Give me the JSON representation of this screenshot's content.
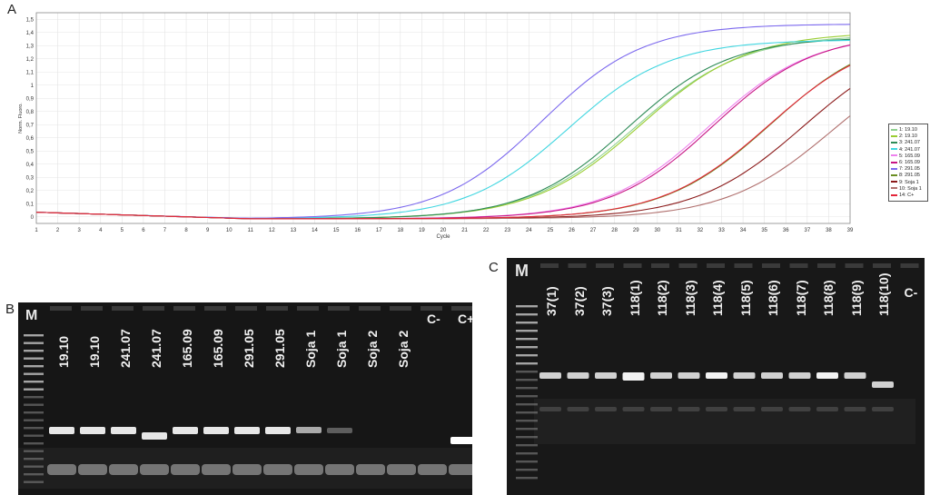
{
  "panels": {
    "a": "A",
    "b": "B",
    "c": "C"
  },
  "chart_data": {
    "type": "line",
    "xlabel": "Cycle",
    "ylabel": "Norm. Fluoro.",
    "xlim": [
      1,
      39
    ],
    "ylim": [
      -0.05,
      1.55
    ],
    "xticks": [
      "1",
      "2",
      "3",
      "4",
      "5",
      "6",
      "7",
      "8",
      "9",
      "10",
      "11",
      "12",
      "13",
      "14",
      "15",
      "16",
      "17",
      "18",
      "19",
      "20",
      "21",
      "22",
      "23",
      "24",
      "25",
      "26",
      "27",
      "28",
      "29",
      "30",
      "31",
      "32",
      "33",
      "34",
      "35",
      "36",
      "37",
      "38",
      "39"
    ],
    "yticks": [
      "0",
      "0,1",
      "0,2",
      "0,3",
      "0,4",
      "0,5",
      "0,6",
      "0,7",
      "0,8",
      "0,9",
      "1",
      "1,1",
      "1,2",
      "1,3",
      "1,4",
      "1,5"
    ],
    "grid": true,
    "legend_position": "right",
    "series": [
      {
        "name": "1: 19.10",
        "color": "#8fd18f",
        "plateau": 1.4,
        "midpoint": 29.0,
        "steepness": 0.4
      },
      {
        "name": "2: 19.10",
        "color": "#9acd32",
        "plateau": 1.42,
        "midpoint": 29.2,
        "steepness": 0.4
      },
      {
        "name": "3: 241.07",
        "color": "#2e8b57",
        "plateau": 1.38,
        "midpoint": 28.6,
        "steepness": 0.42
      },
      {
        "name": "4: 241.07",
        "color": "#40d6e0",
        "plateau": 1.36,
        "midpoint": 25.8,
        "steepness": 0.42
      },
      {
        "name": "5: 165.09",
        "color": "#ee82ee",
        "plateau": 1.4,
        "midpoint": 32.4,
        "steepness": 0.42
      },
      {
        "name": "6: 165.09",
        "color": "#c71585",
        "plateau": 1.41,
        "midpoint": 32.6,
        "steepness": 0.42
      },
      {
        "name": "7: 291.05",
        "color": "#7b68ee",
        "plateau": 1.48,
        "midpoint": 24.6,
        "steepness": 0.42
      },
      {
        "name": "8: 291.05",
        "color": "#6b8e23",
        "plateau": 1.44,
        "midpoint": 35.3,
        "steepness": 0.4
      },
      {
        "name": "9: Soja 1",
        "color": "#8b1a1a",
        "plateau": 1.4,
        "midpoint": 36.8,
        "steepness": 0.4
      },
      {
        "name": "10: Soja 1",
        "color": "#b0706e",
        "plateau": 1.35,
        "midpoint": 38.2,
        "steepness": 0.4
      },
      {
        "name": "14: C+",
        "color": "#e3263a",
        "plateau": 1.42,
        "midpoint": 35.2,
        "steepness": 0.4
      }
    ]
  },
  "gel_b": {
    "marker": "M",
    "lanes": [
      "19.10",
      "19.10",
      "241.07",
      "241.07",
      "165.09",
      "165.09",
      "291.05",
      "291.05",
      "Soja 1",
      "Soja 1",
      "Soja 2",
      "Soja 2",
      "C-",
      "C+"
    ]
  },
  "gel_c": {
    "marker": "M",
    "lanes": [
      "37(1)",
      "37(2)",
      "37(3)",
      "118(1)",
      "118(2)",
      "118(3)",
      "118(4)",
      "118(5)",
      "118(6)",
      "118(7)",
      "118(8)",
      "118(9)",
      "118(10)",
      "C-"
    ]
  }
}
